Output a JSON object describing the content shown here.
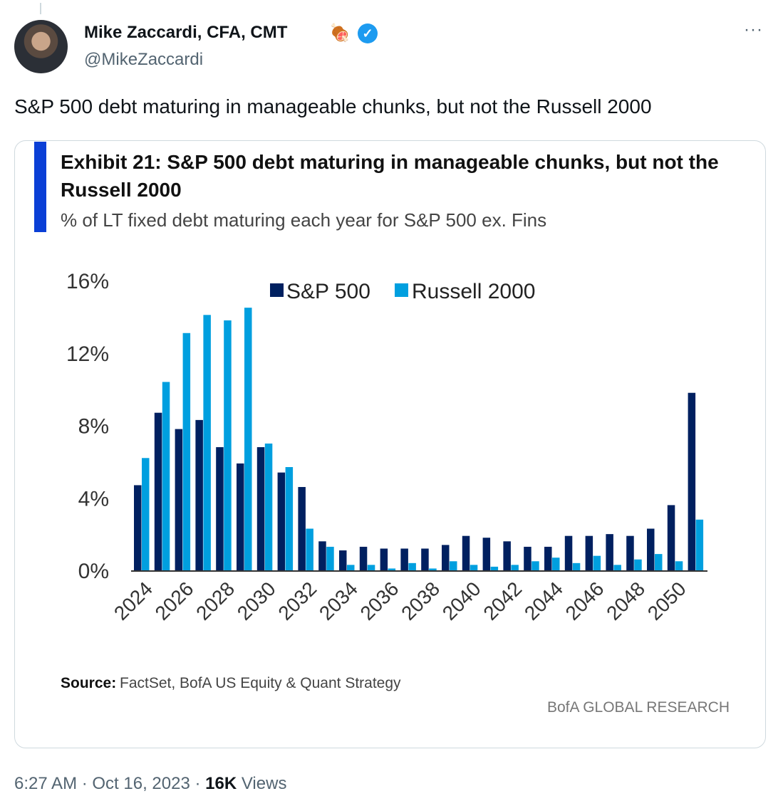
{
  "tweet": {
    "author_name": "Mike Zaccardi, CFA, CMT",
    "author_handle": "@MikeZaccardi",
    "emoji": "🍖",
    "text": "S&P 500 debt maturing in manageable chunks, but not the Russell 2000",
    "time": "6:27 AM",
    "date": "Oct 16, 2023",
    "views_count": "16K",
    "views_label": "Views",
    "more_label": "···"
  },
  "chart_data": {
    "type": "bar",
    "title_line1": "Exhibit 21: S&P 500 debt maturing in manageable chunks, but not the",
    "title_line2": "Russell 2000",
    "subtitle": "% of LT fixed debt maturing each year for S&P 500 ex. Fins",
    "x": [
      2024,
      2025,
      2026,
      2027,
      2028,
      2029,
      2030,
      2031,
      2032,
      2033,
      2034,
      2035,
      2036,
      2037,
      2038,
      2039,
      2040,
      2041,
      2042,
      2043,
      2044,
      2045,
      2046,
      2047,
      2048,
      2049,
      2050,
      2051
    ],
    "xtick_labels": [
      "2024",
      "2026",
      "2028",
      "2030",
      "2032",
      "2034",
      "2036",
      "2038",
      "2040",
      "2042",
      "2044",
      "2046",
      "2048",
      "2050"
    ],
    "ytick_labels": [
      "0%",
      "4%",
      "8%",
      "12%",
      "16%"
    ],
    "yticks": [
      0,
      4,
      8,
      12,
      16
    ],
    "ylim": [
      0,
      16
    ],
    "series": [
      {
        "name": "S&P 500",
        "color": "#002060",
        "values": [
          4.7,
          8.7,
          7.8,
          8.3,
          6.8,
          5.9,
          6.8,
          5.4,
          4.6,
          1.6,
          1.1,
          1.3,
          1.2,
          1.2,
          1.2,
          1.4,
          1.9,
          1.8,
          1.6,
          1.3,
          1.3,
          1.9,
          1.9,
          2.0,
          1.9,
          2.3,
          3.6,
          9.8
        ]
      },
      {
        "name": "Russell 2000",
        "color": "#009fdf",
        "values": [
          6.2,
          10.4,
          13.1,
          14.1,
          13.8,
          14.5,
          7.0,
          5.7,
          2.3,
          1.3,
          0.3,
          0.3,
          0.1,
          0.4,
          0.1,
          0.5,
          0.3,
          0.2,
          0.3,
          0.5,
          0.7,
          0.4,
          0.8,
          0.3,
          0.6,
          0.9,
          0.5,
          2.8
        ]
      }
    ],
    "legend_position": "top",
    "source_label": "Source:",
    "source_text": "FactSet, BofA US Equity & Quant Strategy",
    "watermark": "BofA GLOBAL RESEARCH",
    "accent_color": "#0a3fd6"
  }
}
